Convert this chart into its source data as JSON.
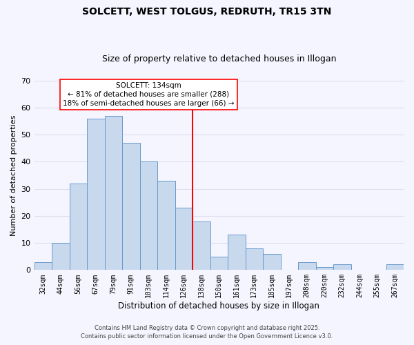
{
  "title": "SOLCETT, WEST TOLGUS, REDRUTH, TR15 3TN",
  "subtitle": "Size of property relative to detached houses in Illogan",
  "xlabel": "Distribution of detached houses by size in Illogan",
  "ylabel": "Number of detached properties",
  "footer1": "Contains HM Land Registry data © Crown copyright and database right 2025.",
  "footer2": "Contains public sector information licensed under the Open Government Licence v3.0.",
  "categories": [
    "32sqm",
    "44sqm",
    "56sqm",
    "67sqm",
    "79sqm",
    "91sqm",
    "103sqm",
    "114sqm",
    "126sqm",
    "138sqm",
    "150sqm",
    "161sqm",
    "173sqm",
    "185sqm",
    "197sqm",
    "208sqm",
    "220sqm",
    "232sqm",
    "244sqm",
    "255sqm",
    "267sqm"
  ],
  "values": [
    3,
    10,
    32,
    56,
    57,
    47,
    40,
    33,
    23,
    18,
    5,
    13,
    8,
    6,
    0,
    3,
    1,
    2,
    0,
    0,
    2
  ],
  "bar_color": "#c8d9ee",
  "bar_edge_color": "#6699cc",
  "marker_label": "SOLCETT: 134sqm",
  "marker_color": "red",
  "annotation_line1": "← 81% of detached houses are smaller (288)",
  "annotation_line2": "18% of semi-detached houses are larger (66) →",
  "annotation_box_edge": "red",
  "ylim": [
    0,
    70
  ],
  "yticks": [
    0,
    10,
    20,
    30,
    40,
    50,
    60,
    70
  ],
  "background_color": "#f5f5ff",
  "grid_color": "#ddddee",
  "title_fontsize": 10,
  "subtitle_fontsize": 9
}
